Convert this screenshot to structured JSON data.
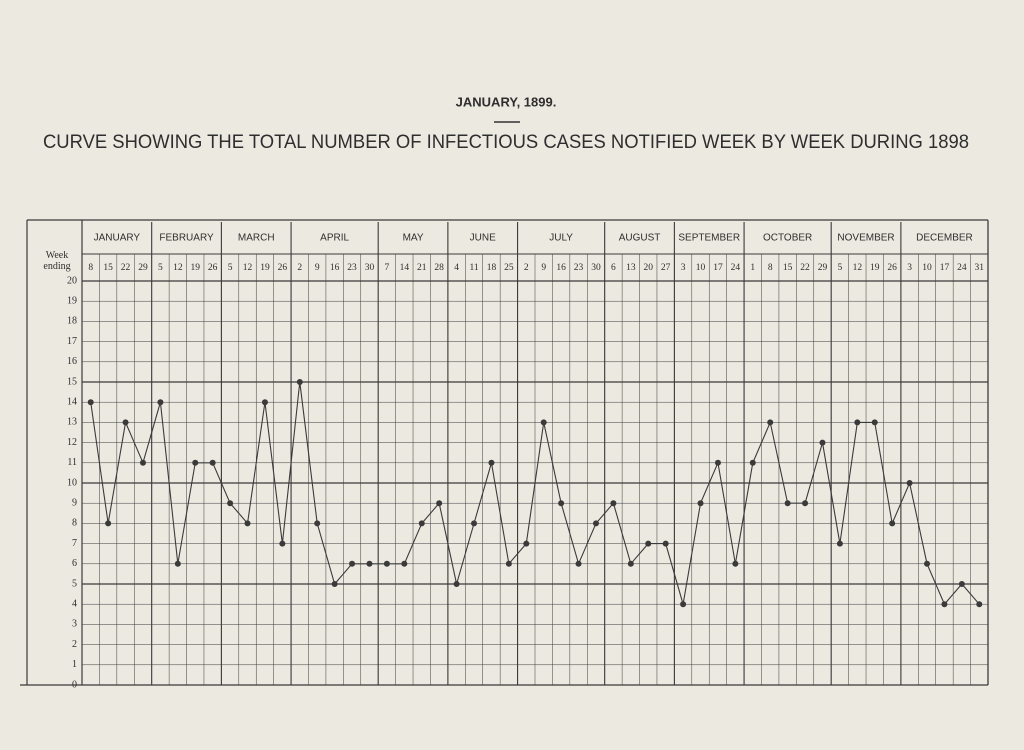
{
  "chart_data": {
    "type": "line",
    "header": "JANUARY, 1899.",
    "title": "CURVE SHOWING THE TOTAL NUMBER OF INFECTIOUS CASES NOTIFIED WEEK BY WEEK DURING 1898",
    "y_label": "Week ending",
    "months": [
      "JANUARY",
      "FEBRUARY",
      "MARCH",
      "APRIL",
      "MAY",
      "JUNE",
      "JULY",
      "AUGUST",
      "SEPTEMBER",
      "OCTOBER",
      "NOVEMBER",
      "DECEMBER"
    ],
    "categories": [
      8,
      15,
      22,
      29,
      5,
      12,
      19,
      26,
      5,
      12,
      19,
      26,
      2,
      9,
      16,
      23,
      30,
      7,
      14,
      21,
      28,
      4,
      11,
      18,
      25,
      2,
      9,
      16,
      23,
      30,
      6,
      13,
      20,
      27,
      3,
      10,
      17,
      24,
      1,
      8,
      15,
      22,
      29,
      5,
      12,
      19,
      26,
      3,
      10,
      17,
      24,
      31
    ],
    "values": [
      14,
      8,
      13,
      11,
      14,
      6,
      11,
      11,
      9,
      8,
      14,
      7,
      15,
      8,
      5,
      6,
      6,
      6,
      6,
      8,
      9,
      5,
      8,
      11,
      6,
      7,
      13,
      9,
      6,
      8,
      9,
      6,
      7,
      7,
      4,
      9,
      11,
      6,
      11,
      13,
      9,
      9,
      12,
      7,
      13,
      13,
      8,
      10,
      6,
      4,
      5,
      4
    ],
    "color": "#3a3a3a",
    "ylim": [
      0,
      20
    ],
    "yticks": [
      0,
      1,
      2,
      3,
      4,
      5,
      6,
      7,
      8,
      9,
      10,
      11,
      12,
      13,
      14,
      15,
      16,
      17,
      18,
      19,
      20
    ],
    "grid": true
  }
}
